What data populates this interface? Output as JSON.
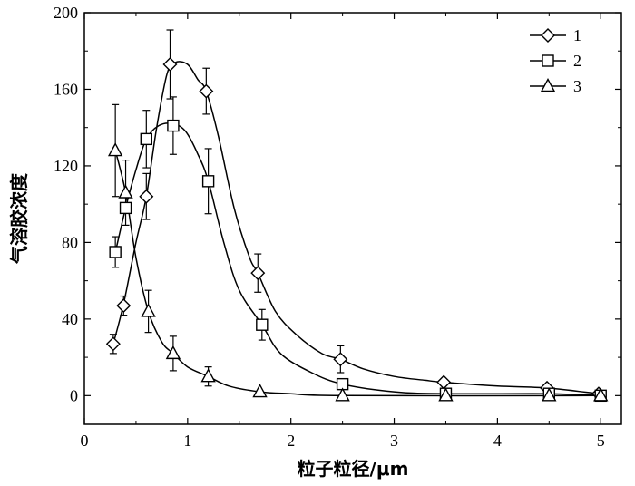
{
  "chart_data": {
    "type": "line",
    "xlabel": "粒子粒径/μm",
    "ylabel": "气溶胶浓度",
    "xlim": [
      0,
      5.2
    ],
    "ylim": [
      -15,
      200
    ],
    "xticks": [
      0,
      1,
      2,
      3,
      4,
      5
    ],
    "yticks": [
      0,
      40,
      80,
      120,
      160,
      200
    ],
    "grid": false,
    "legend_position": "top-right",
    "series": [
      {
        "name": "1",
        "marker": "diamond",
        "points": [
          {
            "x": 0.28,
            "y": 27,
            "err": 5
          },
          {
            "x": 0.38,
            "y": 47,
            "err": 5
          },
          {
            "x": 0.6,
            "y": 104,
            "err": 12
          },
          {
            "x": 0.83,
            "y": 173,
            "err": 18
          },
          {
            "x": 1.18,
            "y": 159,
            "err": 12
          },
          {
            "x": 1.68,
            "y": 64,
            "err": 10
          },
          {
            "x": 2.48,
            "y": 19,
            "err": 7
          },
          {
            "x": 3.48,
            "y": 7,
            "err": 0
          },
          {
            "x": 4.48,
            "y": 4,
            "err": 0
          },
          {
            "x": 4.98,
            "y": 1,
            "err": 0
          }
        ],
        "curve": [
          [
            0.28,
            27
          ],
          [
            0.38,
            48
          ],
          [
            0.5,
            80
          ],
          [
            0.6,
            104
          ],
          [
            0.7,
            140
          ],
          [
            0.8,
            168
          ],
          [
            0.88,
            174
          ],
          [
            1.0,
            173
          ],
          [
            1.1,
            165
          ],
          [
            1.18,
            159
          ],
          [
            1.3,
            135
          ],
          [
            1.45,
            98
          ],
          [
            1.6,
            72
          ],
          [
            1.68,
            64
          ],
          [
            1.85,
            44
          ],
          [
            2.05,
            32
          ],
          [
            2.3,
            22
          ],
          [
            2.48,
            19
          ],
          [
            2.7,
            14
          ],
          [
            3.0,
            10
          ],
          [
            3.3,
            8
          ],
          [
            3.48,
            7
          ],
          [
            4.0,
            5
          ],
          [
            4.48,
            4
          ],
          [
            4.98,
            1
          ]
        ]
      },
      {
        "name": "2",
        "marker": "square",
        "points": [
          {
            "x": 0.3,
            "y": 75,
            "err": 8
          },
          {
            "x": 0.4,
            "y": 98,
            "err": 0
          },
          {
            "x": 0.6,
            "y": 134,
            "err": 15
          },
          {
            "x": 0.86,
            "y": 141,
            "err": 15
          },
          {
            "x": 1.2,
            "y": 112,
            "err": 17
          },
          {
            "x": 1.72,
            "y": 37,
            "err": 8
          },
          {
            "x": 2.5,
            "y": 6,
            "err": 0
          },
          {
            "x": 3.5,
            "y": 1,
            "err": 0
          },
          {
            "x": 4.5,
            "y": 1,
            "err": 0
          },
          {
            "x": 5.0,
            "y": 0,
            "err": 0
          }
        ],
        "curve": [
          [
            0.3,
            75
          ],
          [
            0.4,
            98
          ],
          [
            0.5,
            118
          ],
          [
            0.6,
            134
          ],
          [
            0.72,
            141
          ],
          [
            0.86,
            142
          ],
          [
            0.98,
            138
          ],
          [
            1.1,
            126
          ],
          [
            1.2,
            112
          ],
          [
            1.35,
            80
          ],
          [
            1.5,
            55
          ],
          [
            1.72,
            37
          ],
          [
            1.9,
            22
          ],
          [
            2.2,
            12
          ],
          [
            2.5,
            6
          ],
          [
            3.0,
            2
          ],
          [
            3.5,
            1
          ],
          [
            4.5,
            1
          ],
          [
            5.0,
            0
          ]
        ]
      },
      {
        "name": "3",
        "marker": "triangle",
        "points": [
          {
            "x": 0.3,
            "y": 128,
            "err": 24
          },
          {
            "x": 0.4,
            "y": 106,
            "err": 17
          },
          {
            "x": 0.62,
            "y": 44,
            "err": 11
          },
          {
            "x": 0.86,
            "y": 22,
            "err": 9
          },
          {
            "x": 1.2,
            "y": 10,
            "err": 5
          },
          {
            "x": 1.7,
            "y": 2,
            "err": 0
          },
          {
            "x": 2.5,
            "y": 0,
            "err": 0
          },
          {
            "x": 3.5,
            "y": 0,
            "err": 0
          },
          {
            "x": 4.5,
            "y": 0,
            "err": 0
          },
          {
            "x": 5.0,
            "y": 0,
            "err": 0
          }
        ],
        "curve": [
          [
            0.3,
            128
          ],
          [
            0.4,
            106
          ],
          [
            0.5,
            72
          ],
          [
            0.62,
            44
          ],
          [
            0.75,
            28
          ],
          [
            0.86,
            22
          ],
          [
            1.0,
            15
          ],
          [
            1.2,
            10
          ],
          [
            1.4,
            5
          ],
          [
            1.7,
            2
          ],
          [
            2.0,
            1
          ],
          [
            2.5,
            0
          ],
          [
            5.0,
            0
          ]
        ]
      }
    ]
  }
}
